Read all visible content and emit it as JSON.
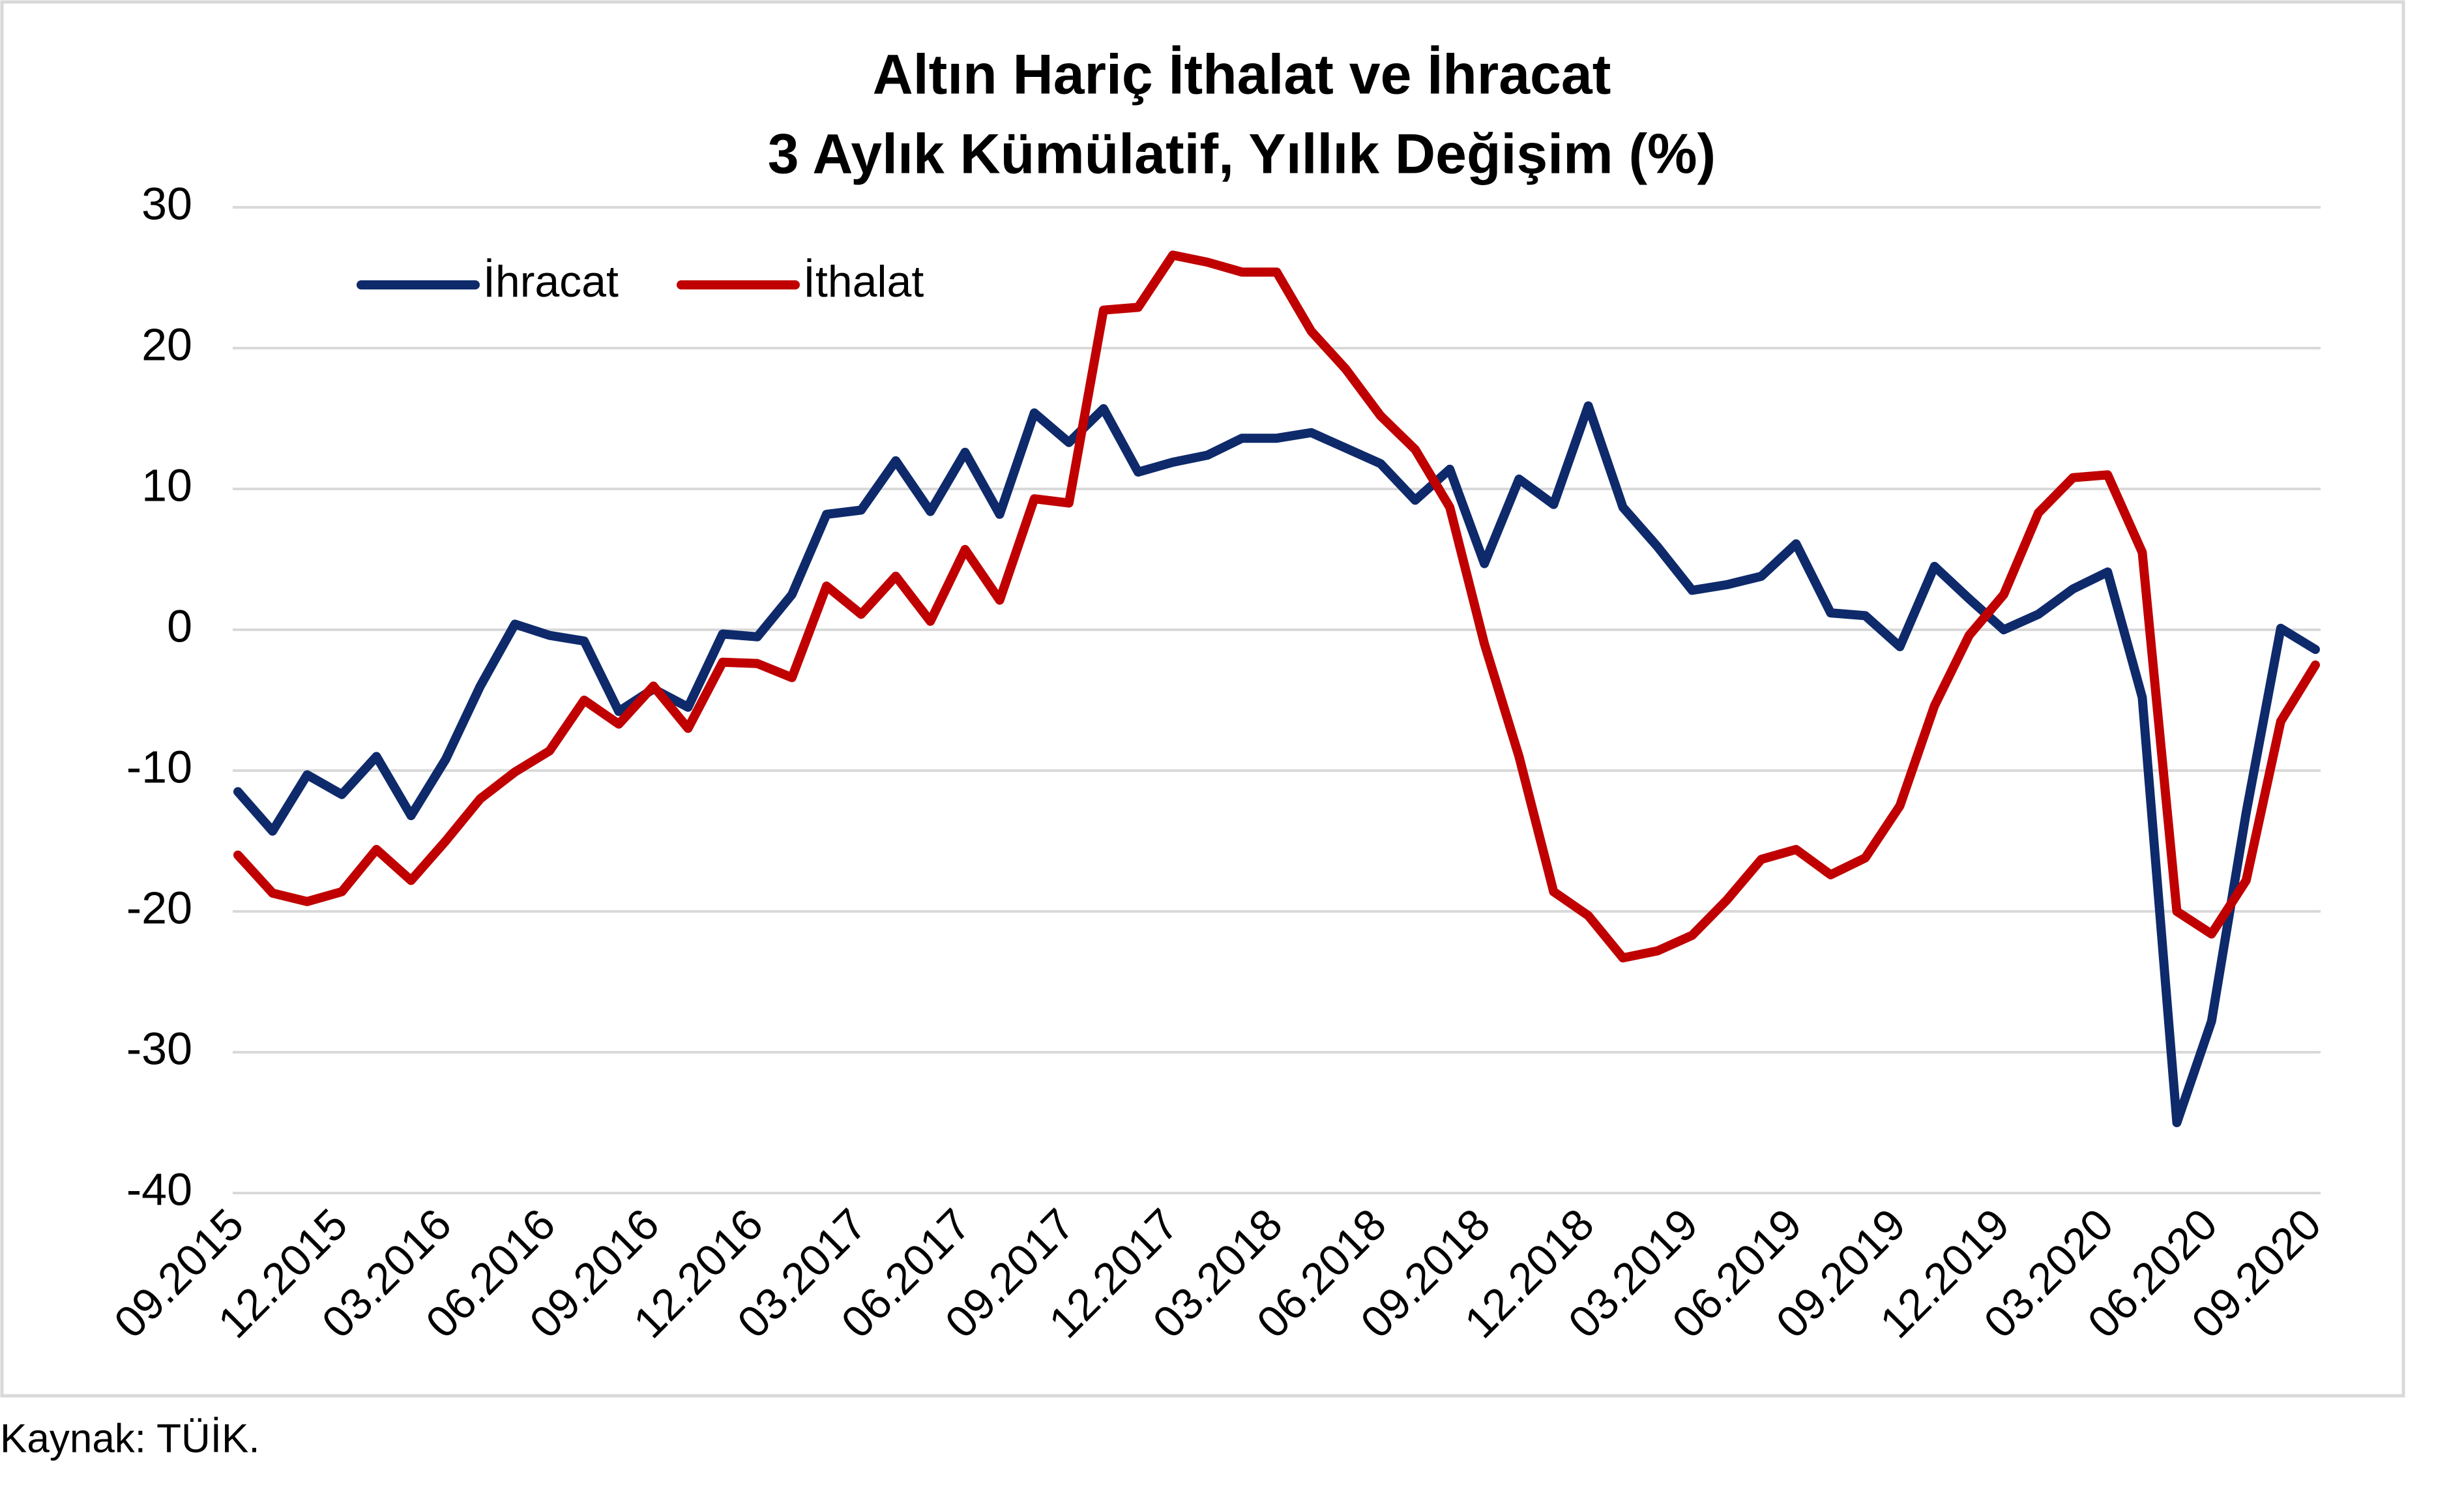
{
  "chart_data": {
    "type": "line",
    "title": "Altın Hariç İthalat ve İhracat",
    "subtitle": "3 Aylık Kümülatif, Yıllık Değişim (%)",
    "source": "Kaynak: TÜİK.",
    "categories": [
      "09.2015",
      null,
      null,
      "12.2015",
      null,
      null,
      "03.2016",
      null,
      null,
      "06.2016",
      null,
      null,
      "09.2016",
      null,
      null,
      "12.2016",
      null,
      null,
      "03.2017",
      null,
      null,
      "06.2017",
      null,
      null,
      "09.2017",
      null,
      null,
      "12.2017",
      null,
      null,
      "03.2018",
      null,
      null,
      "06.2018",
      null,
      null,
      "09.2018",
      null,
      null,
      "12.2018",
      null,
      null,
      "03.2019",
      null,
      null,
      "06.2019",
      null,
      null,
      "09.2019",
      null,
      null,
      "12.2019",
      null,
      null,
      "03.2020",
      null,
      null,
      "06.2020",
      null,
      null,
      "09.2020"
    ],
    "series": [
      {
        "name": "İhracat",
        "color": "#0e2a6b",
        "values": [
          -11.5,
          -14.3,
          -10.3,
          -11.7,
          -9,
          -13.2,
          -9.2,
          -4,
          0.4,
          -0.4,
          -0.8,
          -5.8,
          -4.2,
          -5.5,
          -0.3,
          -0.5,
          2.5,
          8.2,
          8.5,
          12,
          8.4,
          12.6,
          8.2,
          15.4,
          13.3,
          15.7,
          11.2,
          11.9,
          12.4,
          13.6,
          13.6,
          14,
          12.9,
          11.8,
          9.2,
          11.4,
          4.7,
          10.7,
          8.9,
          15.9,
          8.7,
          5.9,
          2.8,
          3.2,
          3.8,
          6.1,
          1.2,
          1,
          -1.2,
          4.5,
          2.2,
          0,
          1.1,
          2.9,
          4.1,
          -4.8,
          -35,
          -27.8,
          -13,
          0.1,
          -1.4
        ]
      },
      {
        "name": "İthalat",
        "color": "#c00000",
        "values": [
          -16,
          -18.7,
          -19.3,
          -18.6,
          -15.6,
          -17.8,
          -15,
          -12,
          -10.1,
          -8.6,
          -5,
          -6.7,
          -4,
          -7,
          -2.3,
          -2.4,
          -3.4,
          3.1,
          1.1,
          3.8,
          0.6,
          5.7,
          2.1,
          9.3,
          9,
          22.7,
          22.9,
          26.6,
          26.1,
          25.4,
          25.4,
          21.2,
          18.5,
          15.2,
          12.8,
          8.7,
          -1,
          -9,
          -18.6,
          -20.3,
          -23.3,
          -22.8,
          -21.7,
          -19.2,
          -16.3,
          -15.6,
          -17.4,
          -16.2,
          -12.5,
          -5.4,
          -0.4,
          2.5,
          8.3,
          10.8,
          11,
          5.5,
          -20,
          -21.6,
          -17.8,
          -6.5,
          -2.5
        ]
      }
    ],
    "ylim": [
      -40,
      30
    ],
    "yticks": [
      -40,
      -30,
      -20,
      -10,
      0,
      10,
      20,
      30
    ],
    "grid": true,
    "legend": "top-left"
  }
}
